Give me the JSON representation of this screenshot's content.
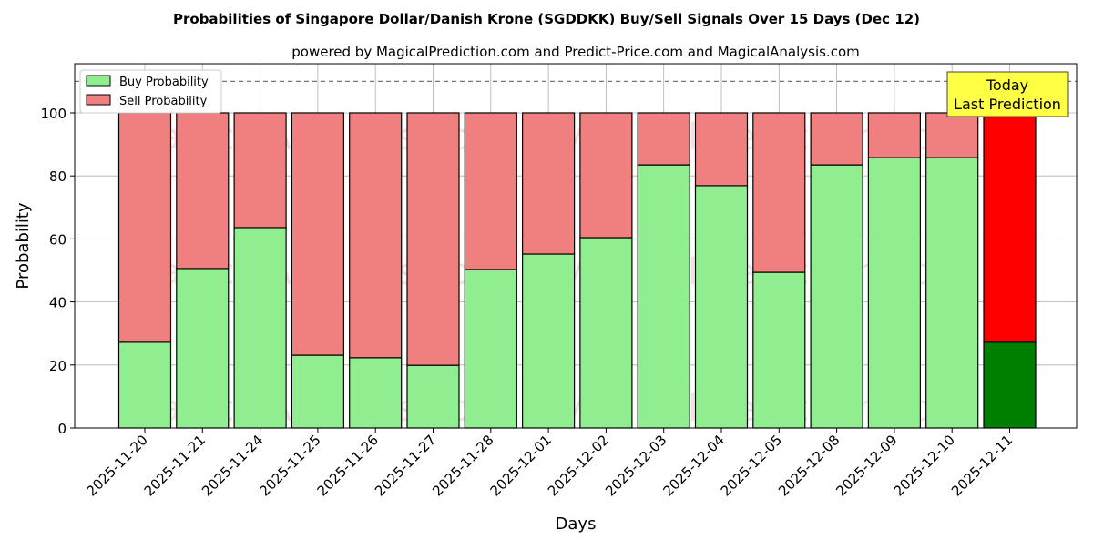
{
  "chart_data": {
    "type": "bar",
    "stacked": true,
    "title": "Probabilities of Singapore Dollar/Danish Krone (SGDDKK) Buy/Sell Signals Over 15 Days (Dec 12)",
    "subtitle": "powered by MagicalPrediction.com and Predict-Price.com and MagicalAnalysis.com",
    "xlabel": "Days",
    "ylabel": "Probability",
    "ylim": [
      0,
      115.6
    ],
    "yticks": [
      0,
      20,
      40,
      60,
      80,
      100
    ],
    "grid": true,
    "legend_position": "top-left",
    "categories": [
      "2025-11-20",
      "2025-11-21",
      "2025-11-24",
      "2025-11-25",
      "2025-11-26",
      "2025-11-27",
      "2025-11-28",
      "2025-12-01",
      "2025-12-02",
      "2025-12-03",
      "2025-12-04",
      "2025-12-05",
      "2025-12-08",
      "2025-12-09",
      "2025-12-10",
      "2025-12-11"
    ],
    "series": [
      {
        "name": "Buy Probability",
        "color": "#90ee90",
        "values": [
          27.2,
          50.6,
          63.6,
          23.1,
          22.3,
          19.9,
          50.3,
          55.2,
          60.4,
          83.5,
          76.9,
          49.4,
          83.5,
          85.8,
          85.8,
          27.2
        ]
      },
      {
        "name": "Sell Probability",
        "color": "#f08080",
        "values": [
          72.8,
          49.4,
          36.4,
          76.9,
          77.7,
          80.1,
          49.7,
          44.8,
          39.6,
          16.5,
          23.1,
          50.6,
          16.5,
          14.2,
          14.2,
          72.8
        ]
      }
    ],
    "highlight": {
      "index": 15,
      "buy_color": "#008000",
      "sell_color": "#ff0000"
    },
    "reference_line": 110,
    "annotation": {
      "line1": "Today",
      "line2": "Last Prediction",
      "color": "#ffff44"
    },
    "watermarks": [
      "MagicalAnalysis.com",
      "MagicalPrediction.com"
    ]
  }
}
